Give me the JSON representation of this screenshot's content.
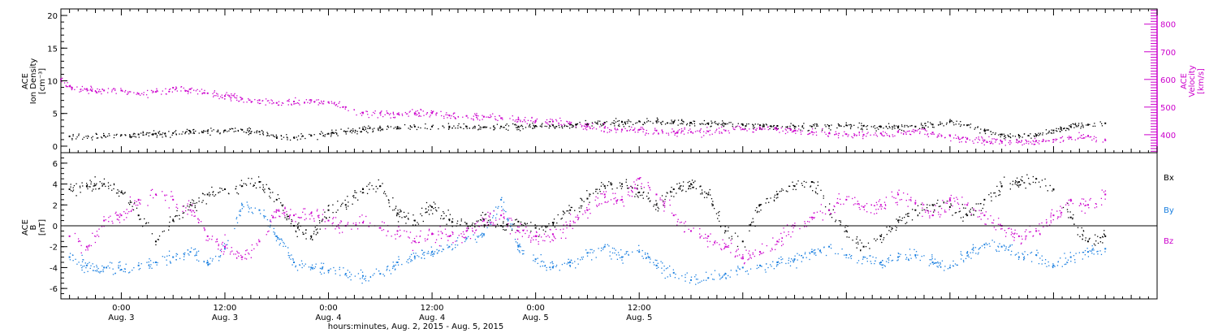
{
  "colors": {
    "density": "#000000",
    "velocity": "#cc00cc",
    "bx": "#000000",
    "by": "#1a7fe0",
    "bz": "#cc00cc"
  },
  "chart_data": [
    {
      "type": "scatter",
      "panel": "plasma",
      "ylabel_lines": [
        "ACE",
        "Ion Density",
        "[cm⁻³]"
      ],
      "y2label_lines": [
        "ACE",
        "Velocity",
        "[km/s]"
      ],
      "xlim": [
        -7,
        120
      ],
      "ylim": [
        -1,
        21
      ],
      "yticks": [
        0,
        5,
        10,
        15,
        20
      ],
      "y2lim": [
        335,
        855
      ],
      "y2ticks": [
        400,
        500,
        600,
        700,
        800
      ],
      "series": [
        {
          "key": "density",
          "axis": "left",
          "x": [
            -6,
            -2,
            0,
            2,
            4,
            6,
            8,
            10,
            12,
            14,
            16,
            18,
            20,
            22,
            24,
            26,
            28,
            30,
            32,
            34,
            36,
            38,
            40,
            42,
            44,
            46,
            48,
            50,
            52,
            54,
            56,
            58,
            60,
            62,
            64,
            66,
            68,
            70,
            72,
            74,
            76,
            78,
            80,
            82,
            84,
            86,
            88,
            90,
            92,
            94,
            96,
            98,
            100,
            102,
            104,
            106,
            108,
            110,
            112,
            114
          ],
          "y": [
            1.5,
            1.6,
            1.7,
            1.8,
            1.9,
            2.0,
            2.2,
            2.3,
            2.4,
            2.5,
            2.2,
            1.4,
            1.3,
            1.6,
            1.9,
            2.2,
            2.6,
            2.8,
            2.9,
            3.0,
            3.0,
            3.0,
            3.0,
            2.9,
            3.0,
            3.0,
            3.1,
            3.2,
            3.3,
            3.4,
            3.6,
            3.7,
            3.8,
            3.8,
            3.7,
            3.6,
            3.5,
            3.4,
            3.3,
            3.2,
            3.1,
            3.0,
            3.0,
            3.1,
            3.2,
            3.1,
            3.0,
            2.9,
            3.0,
            3.3,
            3.8,
            3.2,
            2.4,
            1.8,
            1.6,
            1.7,
            2.4,
            3.0,
            3.3,
            3.5
          ]
        },
        {
          "key": "velocity",
          "axis": "right",
          "x": [
            -7,
            -6,
            -4,
            -2,
            0,
            2,
            4,
            6,
            8,
            10,
            12,
            14,
            16,
            18,
            20,
            22,
            24,
            26,
            28,
            30,
            32,
            34,
            36,
            38,
            40,
            42,
            44,
            46,
            48,
            50,
            52,
            54,
            56,
            58,
            60,
            62,
            64,
            66,
            68,
            70,
            72,
            74,
            76,
            78,
            80,
            82,
            84,
            86,
            88,
            90,
            92,
            94,
            96,
            98,
            100,
            102,
            104,
            106,
            108,
            110,
            112,
            114
          ],
          "y": [
            600,
            575,
            565,
            560,
            560,
            548,
            555,
            570,
            565,
            550,
            540,
            530,
            525,
            515,
            520,
            525,
            518,
            500,
            480,
            478,
            475,
            478,
            478,
            470,
            468,
            465,
            460,
            455,
            450,
            448,
            440,
            430,
            425,
            418,
            418,
            415,
            412,
            410,
            412,
            415,
            420,
            425,
            420,
            415,
            410,
            405,
            402,
            400,
            405,
            410,
            415,
            408,
            398,
            385,
            380,
            375,
            375,
            378,
            382,
            390,
            395,
            380
          ]
        }
      ]
    },
    {
      "type": "scatter",
      "panel": "magnetic",
      "ylabel_lines": [
        "ACE",
        "B",
        "[nT]"
      ],
      "xlim": [
        -7,
        120
      ],
      "ylim": [
        -7,
        7
      ],
      "yticks": [
        -6,
        -4,
        -2,
        0,
        2,
        4,
        6
      ],
      "xticks": [
        0,
        12,
        24,
        36,
        48,
        60
      ],
      "xtick_labels": [
        [
          "0:00",
          "Aug. 3"
        ],
        [
          "12:00",
          "Aug. 3"
        ],
        [
          "0:00",
          "Aug. 4"
        ],
        [
          "12:00",
          "Aug. 4"
        ],
        [
          "0:00",
          "Aug. 5"
        ],
        [
          "12:00",
          "Aug. 5"
        ]
      ],
      "xlabel": "hours:minutes, Aug.  2, 2015 - Aug.  5, 2015",
      "legend": [
        "Bx",
        "By",
        "Bz"
      ],
      "legend_placement": "right",
      "series": [
        {
          "key": "bx",
          "x": [
            -6,
            -4,
            -2,
            0,
            2,
            4,
            6,
            8,
            10,
            12,
            14,
            16,
            18,
            20,
            22,
            24,
            26,
            28,
            30,
            32,
            34,
            36,
            38,
            40,
            42,
            44,
            46,
            48,
            50,
            52,
            54,
            56,
            58,
            60,
            62,
            64,
            66,
            68,
            70,
            72,
            74,
            76,
            78,
            80,
            82,
            84,
            86,
            88,
            90,
            92,
            94,
            96,
            98,
            100,
            102,
            104,
            106,
            108,
            110,
            112,
            114
          ],
          "y": [
            3.5,
            3.8,
            4.0,
            3.2,
            1.0,
            -1.5,
            0.5,
            2.0,
            3.0,
            3.5,
            3.8,
            4.2,
            2.5,
            0.0,
            -1.0,
            1.5,
            2.0,
            3.5,
            3.8,
            1.2,
            0.5,
            1.8,
            0.6,
            0.2,
            0.6,
            0.0,
            0.4,
            -0.2,
            0.3,
            1.5,
            2.6,
            3.8,
            4.0,
            3.2,
            2.0,
            3.5,
            4.0,
            3.0,
            -0.5,
            -1.5,
            2.0,
            3.0,
            3.8,
            4.2,
            1.5,
            -0.5,
            -2.0,
            -1.0,
            0.5,
            1.5,
            2.0,
            1.8,
            1.0,
            2.5,
            3.8,
            4.2,
            4.5,
            3.5,
            0.8,
            -1.5,
            -1.0
          ]
        },
        {
          "key": "by",
          "x": [
            -6,
            -4,
            -2,
            0,
            2,
            4,
            6,
            8,
            10,
            12,
            14,
            16,
            18,
            20,
            22,
            24,
            26,
            28,
            30,
            32,
            34,
            36,
            38,
            40,
            42,
            44,
            46,
            48,
            50,
            52,
            54,
            56,
            58,
            60,
            62,
            64,
            66,
            68,
            70,
            72,
            74,
            76,
            78,
            80,
            82,
            84,
            86,
            88,
            90,
            92,
            94,
            96,
            98,
            100,
            102,
            104,
            106,
            108,
            110,
            112,
            114
          ],
          "y": [
            -3.0,
            -3.8,
            -4.0,
            -4.2,
            -3.8,
            -3.5,
            -3.0,
            -2.5,
            -3.5,
            -2.2,
            2.0,
            1.5,
            -1.0,
            -3.5,
            -4.0,
            -4.3,
            -4.6,
            -4.8,
            -4.6,
            -3.5,
            -3.0,
            -2.5,
            -2.0,
            -1.2,
            -0.8,
            2.5,
            -2.0,
            -3.2,
            -4.0,
            -3.5,
            -2.6,
            -2.0,
            -3.0,
            -2.5,
            -3.8,
            -4.5,
            -5.2,
            -5.0,
            -4.6,
            -4.0,
            -3.8,
            -3.5,
            -3.2,
            -2.5,
            -2.0,
            -2.8,
            -3.0,
            -3.5,
            -3.0,
            -2.8,
            -3.5,
            -4.0,
            -2.6,
            -1.8,
            -2.0,
            -3.0,
            -2.8,
            -3.8,
            -3.0,
            -2.5,
            -2.2
          ]
        },
        {
          "key": "bz",
          "x": [
            -6,
            -4,
            -2,
            0,
            2,
            4,
            6,
            8,
            10,
            12,
            14,
            16,
            18,
            20,
            22,
            24,
            26,
            28,
            30,
            32,
            34,
            36,
            38,
            40,
            42,
            44,
            46,
            48,
            50,
            52,
            54,
            56,
            58,
            60,
            62,
            64,
            66,
            68,
            70,
            72,
            74,
            76,
            78,
            80,
            82,
            84,
            86,
            88,
            90,
            92,
            94,
            96,
            98,
            100,
            102,
            104,
            106,
            108,
            110,
            112,
            114
          ],
          "y": [
            -1.0,
            -2.0,
            0.5,
            1.0,
            2.5,
            3.0,
            2.5,
            1.5,
            -1.0,
            -2.0,
            -3.0,
            -1.5,
            1.5,
            1.0,
            1.2,
            0.5,
            0.0,
            0.3,
            -0.2,
            -0.5,
            -1.5,
            -0.8,
            -1.0,
            -0.5,
            0.5,
            1.0,
            -0.5,
            -1.0,
            -0.8,
            0.0,
            1.5,
            3.0,
            2.5,
            4.5,
            3.0,
            1.0,
            -0.5,
            -1.0,
            -2.0,
            -3.0,
            -2.5,
            -1.5,
            0.0,
            0.8,
            1.5,
            2.5,
            1.8,
            2.0,
            3.0,
            2.2,
            1.0,
            2.5,
            2.0,
            1.0,
            0.0,
            -1.0,
            -0.5,
            1.0,
            2.5,
            2.0,
            3.0
          ]
        }
      ]
    }
  ]
}
